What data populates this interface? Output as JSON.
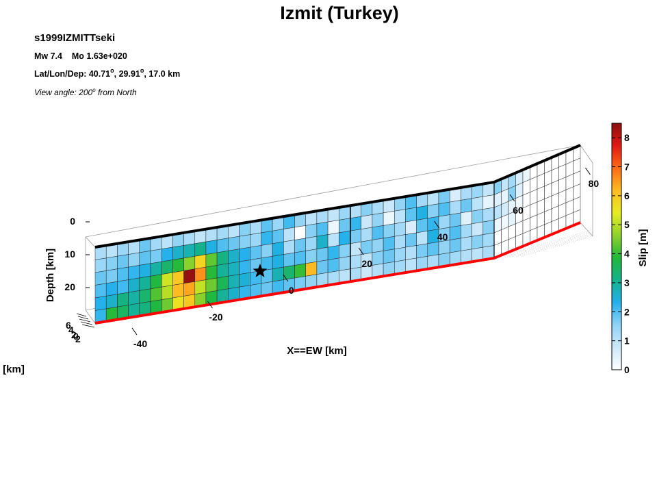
{
  "chart_data": {
    "type": "heatmap",
    "title": "Izmit (Turkey)",
    "event_id": "s1999IZMITTseki",
    "magnitude_line": "Mw 7.4    Mo 1.63e+020",
    "location_prefix": "Lat/Lon/Dep: 40.71",
    "lat_deg_sup": "o",
    "lon_value": ", 29.91",
    "lon_deg_sup": "o",
    "depth_value": ", 17.0 km",
    "view_prefix": "View angle: 200",
    "view_deg_sup": "o",
    "view_suffix": " from North",
    "xlabel": "X==EW [km]",
    "ylabel": "Depth [km]",
    "zlabel_partial": "S [km]",
    "colorbar_label": "Slip [m]",
    "colorbar_ticks": [
      "0",
      "1",
      "2",
      "3",
      "4",
      "5",
      "6",
      "7",
      "8"
    ],
    "clim": [
      0,
      8.5
    ],
    "colormap": [
      "#ffffff",
      "#cde9fb",
      "#8fd3f5",
      "#22b0ec",
      "#14b28d",
      "#22b83a",
      "#8ed22b",
      "#e6ec22",
      "#ffbd22",
      "#ff6a16",
      "#e11a12",
      "#8a1010"
    ],
    "x_ticks": [
      "-40",
      "-20",
      "0",
      "20",
      "40",
      "60",
      "80"
    ],
    "depth_ticks": [
      "0",
      "10",
      "20"
    ],
    "ns_ticks": [
      "6",
      "4",
      "2",
      "0",
      "2"
    ],
    "xlim": [
      -50,
      95
    ],
    "depth_range": [
      0,
      25
    ],
    "hypocenter": {
      "x_km": -6,
      "depth_km": 17
    },
    "segments": [
      {
        "x_start": -48,
        "x_end": 57,
        "cols": 36,
        "rows": 6,
        "slip": [
          [
            1.2,
            1.0,
            1.4,
            1.1,
            1.8,
            1.3,
            1.0,
            1.5,
            1.2,
            0.9,
            1.1,
            1.3,
            1.0,
            1.6,
            1.2,
            1.9,
            1.4,
            2.1,
            1.5,
            1.0,
            1.2,
            0.9,
            1.4,
            1.1,
            1.6,
            1.2,
            0.8,
            1.5,
            2.0,
            1.3,
            1.0,
            1.7,
            0.6,
            1.2,
            1.4,
            0.9
          ],
          [
            1.4,
            1.6,
            1.8,
            1.5,
            1.9,
            1.7,
            2.3,
            2.6,
            2.8,
            3.1,
            2.4,
            2.0,
            1.8,
            1.6,
            1.4,
            2.2,
            1.9,
            1.0,
            0.0,
            1.6,
            2.0,
            0.3,
            1.8,
            2.2,
            0.8,
            1.5,
            0.3,
            1.0,
            1.9,
            2.4,
            1.6,
            2.0,
            1.2,
            1.8,
            1.0,
            0.4
          ],
          [
            1.8,
            1.7,
            2.0,
            2.2,
            2.4,
            2.9,
            3.4,
            3.9,
            4.6,
            5.8,
            4.3,
            3.2,
            2.6,
            2.3,
            1.9,
            1.6,
            2.4,
            1.2,
            1.8,
            1.4,
            2.6,
            1.0,
            2.3,
            1.7,
            1.2,
            2.0,
            1.6,
            1.3,
            0.6,
            1.9,
            2.2,
            1.4,
            1.8,
            0.5,
            1.6,
            1.2
          ],
          [
            2.0,
            2.3,
            2.1,
            2.6,
            3.0,
            3.8,
            5.2,
            6.0,
            8.4,
            6.6,
            3.9,
            3.0,
            2.7,
            2.2,
            1.8,
            2.1,
            2.4,
            1.9,
            2.0,
            1.6,
            1.8,
            2.2,
            1.6,
            0.9,
            1.7,
            1.5,
            2.0,
            1.2,
            1.8,
            1.0,
            2.4,
            1.6,
            2.0,
            1.3,
            0.8,
            1.6
          ],
          [
            2.3,
            2.6,
            3.2,
            2.9,
            3.4,
            4.2,
            5.0,
            6.2,
            6.4,
            5.1,
            4.4,
            3.6,
            2.8,
            2.5,
            2.1,
            1.9,
            2.8,
            3.4,
            4.0,
            6.2,
            1.8,
            2.0,
            1.5,
            1.2,
            0.9,
            1.6,
            1.8,
            1.4,
            1.1,
            1.7,
            1.9,
            1.5,
            1.8,
            1.2,
            1.6,
            1.3
          ],
          [
            2.2,
            3.9,
            3.5,
            3.0,
            3.2,
            3.8,
            4.4,
            5.6,
            6.0,
            4.6,
            3.8,
            3.0,
            2.6,
            2.2,
            2.0,
            1.8,
            2.1,
            1.9,
            1.7,
            1.5,
            1.3,
            1.2,
            1.0,
            1.2,
            0.8,
            1.1,
            1.5,
            1.3,
            1.0,
            1.4,
            1.2,
            1.6,
            1.3,
            1.1,
            1.0,
            1.2
          ]
        ]
      },
      {
        "x_start": 57,
        "x_end": 95,
        "cols": 12,
        "rows": 6,
        "slip": [
          [
            1.6,
            0.9,
            1.3,
            0.6,
            0.3,
            0.0,
            0.0,
            0.0,
            0.0,
            0.0,
            0.0,
            0.0
          ],
          [
            0.5,
            0.4,
            1.6,
            0.5,
            0.0,
            0.0,
            0.0,
            0.0,
            0.0,
            0.0,
            0.0,
            0.0
          ],
          [
            1.0,
            0.7,
            0.4,
            0.2,
            0.0,
            0.0,
            0.0,
            0.0,
            0.0,
            0.0,
            0.0,
            0.0
          ],
          [
            0.3,
            0.2,
            0.4,
            0.0,
            0.0,
            0.0,
            0.0,
            0.0,
            0.0,
            0.0,
            0.0,
            0.0
          ],
          [
            0.0,
            0.0,
            0.0,
            0.0,
            0.0,
            0.0,
            0.0,
            0.0,
            0.0,
            0.0,
            0.0,
            0.0
          ],
          [
            0.0,
            0.0,
            0.0,
            0.0,
            0.0,
            0.0,
            0.0,
            0.0,
            0.0,
            0.0,
            0.0,
            0.0
          ]
        ]
      }
    ],
    "top_edge_color": "#000000",
    "bottom_edge_color": "#ff0000",
    "grid": true
  }
}
